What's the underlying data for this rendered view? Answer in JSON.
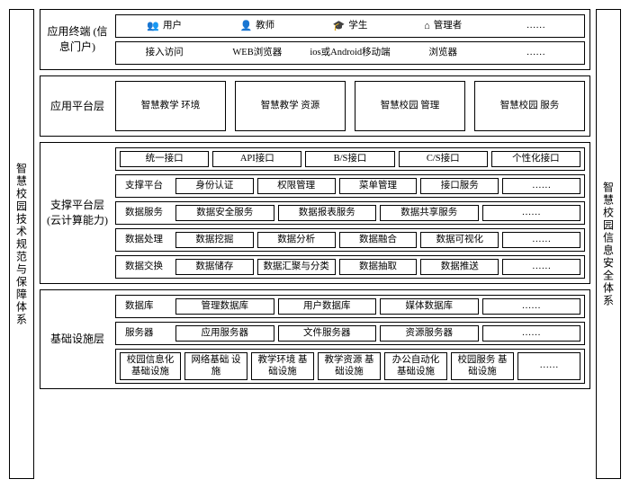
{
  "left_pillar": "智慧校园技术规范与保障体系",
  "right_pillar": "智慧校园信息安全体系",
  "layers": {
    "terminal": {
      "label": "应用终端\n(信息门户)",
      "users": [
        {
          "icon": "👥",
          "label": "用户"
        },
        {
          "icon": "👤",
          "label": "教师"
        },
        {
          "icon": "🎓",
          "label": "学生"
        },
        {
          "icon": "⌂",
          "label": "管理者"
        },
        {
          "icon": "",
          "label": "……"
        }
      ],
      "access": [
        "接入访问",
        "WEB浏览器",
        "ios或Android移动端",
        "浏览器",
        "……"
      ]
    },
    "app": {
      "label": "应用平台层",
      "items": [
        "智慧教学\n环境",
        "智慧教学\n资源",
        "智慧校园\n管理",
        "智慧校园\n服务"
      ]
    },
    "support": {
      "label": "支撑平台层\n(云计算能力)",
      "rows": [
        {
          "lead": "",
          "cells": [
            "统一接口",
            "API接口",
            "B/S接口",
            "C/S接口",
            "个性化接口"
          ]
        },
        {
          "lead": "支撑平台",
          "cells": [
            "身份认证",
            "权限管理",
            "菜单管理",
            "接口服务",
            "……"
          ]
        },
        {
          "lead": "数据服务",
          "cells": [
            "数据安全服务",
            "数据报表服务",
            "数据共享服务",
            "……"
          ]
        },
        {
          "lead": "数据处理",
          "cells": [
            "数据挖掘",
            "数据分析",
            "数据融合",
            "数据可视化",
            "……"
          ]
        },
        {
          "lead": "数据交换",
          "cells": [
            "数据储存",
            "数据汇聚与分类",
            "数据抽取",
            "数据推送",
            "……"
          ]
        }
      ]
    },
    "infra": {
      "label": "基础设施层",
      "rows": [
        {
          "lead": "数据库",
          "cells": [
            "管理数据库",
            "用户数据库",
            "媒体数据库",
            "……"
          ]
        },
        {
          "lead": "服务器",
          "cells": [
            "应用服务器",
            "文件服务器",
            "资源服务器",
            "……"
          ]
        },
        {
          "lead": "校园信息化\n基础设施",
          "leadbox": true,
          "cells": [
            "网络基础\n设施",
            "教学环境\n基础设施",
            "教学资源\n基础设施",
            "办公自动化\n基础设施",
            "校园服务\n基础设施",
            "……"
          ]
        }
      ]
    }
  }
}
